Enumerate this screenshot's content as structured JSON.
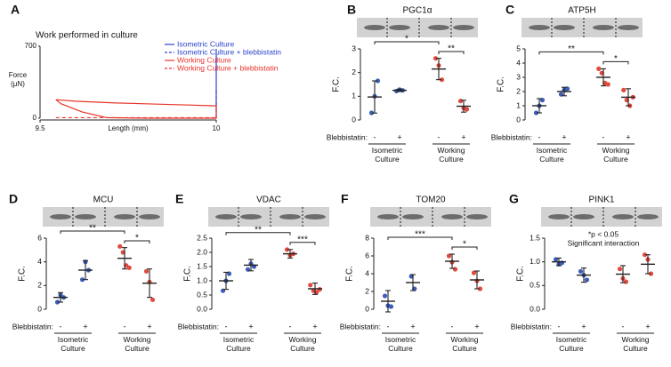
{
  "chart_data": [
    {
      "panel": "A",
      "type": "line",
      "title": "Work performed in culture",
      "xlabel": "Length (mm)",
      "ylabel": "Force (μN)",
      "xlim": [
        9.5,
        10
      ],
      "xticks": [
        9.5,
        10
      ],
      "ylim": [
        0,
        700
      ],
      "yticks": [
        0,
        700
      ],
      "legend": "upper right",
      "series": [
        {
          "name": "Isometric Culture",
          "color": "#2c46c9",
          "dashed": false,
          "x": [
            10,
            10
          ],
          "values": [
            0,
            675
          ]
        },
        {
          "name": "Isometric Culture + blebbistatin",
          "color": "#2c46c9",
          "dashed": true,
          "x": [
            10,
            10
          ],
          "values": [
            0,
            300
          ]
        },
        {
          "name": "Working  Culture",
          "color": "#e8332a",
          "dashed": false,
          "x": [
            9.545,
            9.56,
            9.62,
            9.69,
            9.8,
            10,
            10,
            9.9,
            9.8,
            9.7,
            9.6,
            9.545
          ],
          "values": [
            180,
            140,
            60,
            5,
            0,
            0,
            120,
            130,
            140,
            150,
            165,
            180
          ]
        },
        {
          "name": "Working Culture + blebbistatin",
          "color": "#e8332a",
          "dashed": true,
          "x": [
            9.545,
            10
          ],
          "values": [
            5,
            5
          ]
        }
      ]
    },
    {
      "panel": "B",
      "type": "dot",
      "title": "PGC1α",
      "ylabel": "F.C.",
      "ylim": [
        0,
        3
      ],
      "yticks": [
        0,
        1,
        2,
        3
      ],
      "row_label": "Blebbistatin:",
      "categories": [
        "-",
        "+",
        "-",
        "+"
      ],
      "group_labels": [
        "Isometric Culture",
        "Working Culture"
      ],
      "groups": [
        {
          "color": "#3d5db8",
          "points": [
            0.3,
            1.0,
            1.65
          ],
          "mean": 0.97,
          "sd": 0.68
        },
        {
          "color": "#3d5db8",
          "points": [
            1.22,
            1.28,
            1.25
          ],
          "mean": 1.25,
          "sd": 0.05
        },
        {
          "color": "#e04a3f",
          "points": [
            2.6,
            2.3,
            1.7
          ],
          "mean": 2.15,
          "sd": 0.45
        },
        {
          "color": "#e04a3f",
          "points": [
            0.8,
            0.5,
            0.45
          ],
          "mean": 0.58,
          "sd": 0.25
        }
      ],
      "annotations": [
        {
          "text": "*",
          "between": [
            0,
            2
          ]
        },
        {
          "text": "**",
          "between": [
            2,
            3
          ]
        }
      ]
    },
    {
      "panel": "C",
      "type": "dot",
      "title": "ATP5H",
      "ylabel": "F.C.",
      "ylim": [
        0,
        5
      ],
      "yticks": [
        0,
        1,
        2,
        3,
        4,
        5
      ],
      "row_label": "Blebbistatin:",
      "categories": [
        "-",
        "+",
        "-",
        "+"
      ],
      "group_labels": [
        "Isometric Culture",
        "Working Culture"
      ],
      "groups": [
        {
          "color": "#3d5db8",
          "points": [
            0.5,
            1.0,
            1.4
          ],
          "mean": 1.0,
          "sd": 0.5
        },
        {
          "color": "#3d5db8",
          "points": [
            1.8,
            2.1,
            2.2
          ],
          "mean": 2.0,
          "sd": 0.3
        },
        {
          "color": "#e04a3f",
          "points": [
            3.6,
            3.3,
            2.6,
            2.5
          ],
          "mean": 3.0,
          "sd": 0.6
        },
        {
          "color": "#e04a3f",
          "points": [
            2.1,
            1.4,
            1.0,
            1.6
          ],
          "mean": 1.6,
          "sd": 0.6
        }
      ],
      "annotations": [
        {
          "text": "**",
          "between": [
            0,
            2
          ]
        },
        {
          "text": "*",
          "between": [
            2,
            3
          ]
        }
      ]
    },
    {
      "panel": "D",
      "type": "dot",
      "title": "MCU",
      "ylabel": "F.C.",
      "ylim": [
        0,
        6
      ],
      "yticks": [
        0,
        2,
        4,
        6
      ],
      "row_label": "Blebbistatin:",
      "categories": [
        "-",
        "+",
        "-",
        "+"
      ],
      "group_labels": [
        "Isometric Culture",
        "Working Culture"
      ],
      "groups": [
        {
          "color": "#3d5db8",
          "points": [
            0.6,
            1.2,
            1.0
          ],
          "mean": 1.0,
          "sd": 0.4
        },
        {
          "color": "#3d5db8",
          "points": [
            2.5,
            4.0,
            3.3
          ],
          "mean": 3.3,
          "sd": 0.8
        },
        {
          "color": "#e04a3f",
          "points": [
            5.3,
            4.8,
            3.7,
            3.5
          ],
          "mean": 4.3,
          "sd": 0.9
        },
        {
          "color": "#e04a3f",
          "points": [
            3.2,
            2.3,
            0.8
          ],
          "mean": 2.2,
          "sd": 1.2
        }
      ],
      "annotations": [
        {
          "text": "**",
          "between": [
            0,
            2
          ]
        },
        {
          "text": "*",
          "between": [
            2,
            3
          ]
        }
      ]
    },
    {
      "panel": "E",
      "type": "dot",
      "title": "VDAC",
      "ylabel": "F.C.",
      "ylim": [
        0,
        2.5
      ],
      "yticks": [
        {
          "value": 0,
          "label": "0.0"
        },
        0.5,
        {
          "value": 1,
          "label": "1.0"
        },
        1.5,
        {
          "value": 2,
          "label": "2.0"
        },
        2.5
      ],
      "row_label": "Blebbistatin:",
      "categories": [
        "-",
        "+",
        "-",
        "+"
      ],
      "group_labels": [
        "Isometric Culture",
        "Working Culture"
      ],
      "groups": [
        {
          "color": "#3d5db8",
          "points": [
            0.65,
            1.0,
            1.25
          ],
          "mean": 1.0,
          "sd": 0.3
        },
        {
          "color": "#3d5db8",
          "points": [
            1.4,
            1.6,
            1.5
          ],
          "mean": 1.55,
          "sd": 0.2
        },
        {
          "color": "#e04a3f",
          "points": [
            2.1,
            1.9,
            1.95
          ],
          "mean": 1.95,
          "sd": 0.15
        },
        {
          "color": "#e04a3f",
          "points": [
            0.85,
            0.65,
            0.6,
            0.7
          ],
          "mean": 0.72,
          "sd": 0.2
        }
      ],
      "annotations": [
        {
          "text": "**",
          "between": [
            0,
            2
          ]
        },
        {
          "text": "***",
          "between": [
            2,
            3
          ]
        }
      ]
    },
    {
      "panel": "F",
      "type": "dot",
      "title": "TOM20",
      "ylabel": "F.C.",
      "ylim": [
        0,
        8
      ],
      "yticks": [
        0,
        2,
        4,
        6,
        8
      ],
      "row_label": "Blebbistatin:",
      "categories": [
        "-",
        "+",
        "-",
        "+"
      ],
      "group_labels": [
        "Isometric Culture",
        "Working Culture"
      ],
      "groups": [
        {
          "color": "#3d5db8",
          "points": [
            1.5,
            0.4,
            0.3
          ],
          "mean": 0.9,
          "sd": 1.2
        },
        {
          "color": "#3d5db8",
          "points": [
            3.7,
            2.3
          ],
          "mean": 3.0,
          "sd": 0.9
        },
        {
          "color": "#e04a3f",
          "points": [
            6.0,
            5.3,
            4.5
          ],
          "mean": 5.4,
          "sd": 0.8
        },
        {
          "color": "#e04a3f",
          "points": [
            4.1,
            3.2,
            2.3
          ],
          "mean": 3.3,
          "sd": 1.0
        }
      ],
      "annotations": [
        {
          "text": "***",
          "between": [
            0,
            2
          ]
        },
        {
          "text": "*",
          "between": [
            2,
            3
          ]
        }
      ]
    },
    {
      "panel": "G",
      "type": "dot",
      "title": "PINK1",
      "ylabel": "F.C.",
      "ylim": [
        0,
        1.5
      ],
      "yticks": [
        {
          "value": 0,
          "label": "0.0"
        },
        0.5,
        {
          "value": 1,
          "label": "1.0"
        },
        1.5
      ],
      "row_label": "Blebbistatin:",
      "categories": [
        "-",
        "+",
        "-",
        "+"
      ],
      "group_labels": [
        "Isometric Culture",
        "Working Culture"
      ],
      "note": [
        "*p < 0.05",
        "Significant interaction"
      ],
      "groups": [
        {
          "color": "#3d5db8",
          "points": [
            1.05,
            0.95,
            0.98
          ],
          "mean": 1.0,
          "sd": 0.08
        },
        {
          "color": "#3d5db8",
          "points": [
            0.8,
            0.72,
            0.62
          ],
          "mean": 0.72,
          "sd": 0.15
        },
        {
          "color": "#e04a3f",
          "points": [
            0.85,
            0.65,
            0.58
          ],
          "mean": 0.74,
          "sd": 0.18
        },
        {
          "color": "#e04a3f",
          "points": [
            1.15,
            1.05,
            0.75
          ],
          "mean": 0.95,
          "sd": 0.2
        }
      ]
    }
  ]
}
